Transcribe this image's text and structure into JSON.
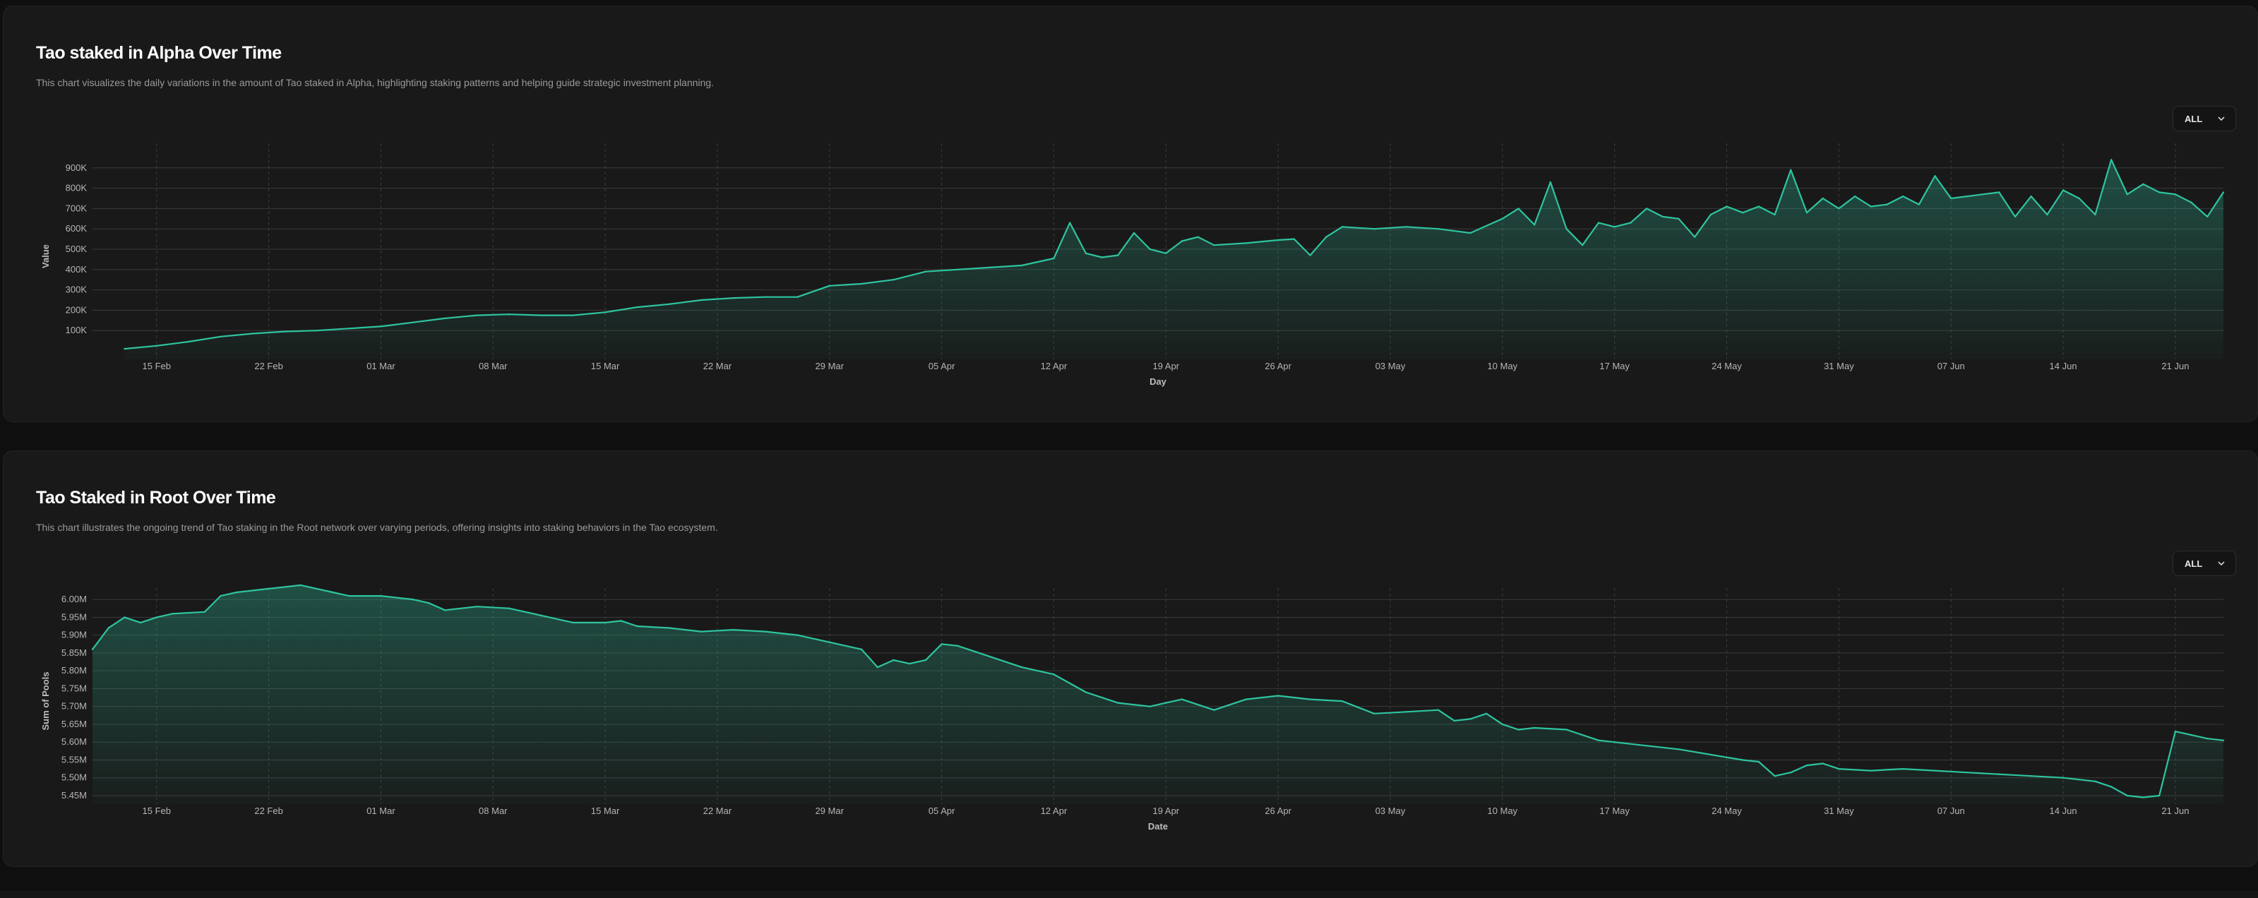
{
  "cards": [
    {
      "title": "Tao staked in Alpha Over Time",
      "description": "This chart visualizes the daily variations in the amount of Tao staked in Alpha, highlighting staking patterns and helping guide strategic investment planning.",
      "range": {
        "selected": "ALL",
        "icon": "chevron-down-icon"
      }
    },
    {
      "title": "Tao Staked in Root Over Time",
      "description": "This chart illustrates the ongoing trend of Tao staking in the Root network over varying periods, offering insights into staking behaviors in the Tao ecosystem.",
      "range": {
        "selected": "ALL",
        "icon": "chevron-down-icon"
      }
    }
  ],
  "colors": {
    "line": "#2ec4a0",
    "background": "#191919",
    "grid": "#3a3a3a"
  },
  "chart_data": [
    {
      "type": "area",
      "xlabel": "Day",
      "ylabel": "Value",
      "x_range": [
        "2025-02-11",
        "2025-06-24"
      ],
      "ylim": [
        0,
        1000000
      ],
      "yticks": [
        100000,
        200000,
        300000,
        400000,
        500000,
        600000,
        700000,
        800000,
        900000
      ],
      "ytick_labels": [
        "100K",
        "200K",
        "300K",
        "400K",
        "500K",
        "600K",
        "700K",
        "800K",
        "900K"
      ],
      "xticks": [
        "2025-02-15",
        "2025-02-22",
        "2025-03-01",
        "2025-03-08",
        "2025-03-15",
        "2025-03-22",
        "2025-03-29",
        "2025-04-05",
        "2025-04-12",
        "2025-04-19",
        "2025-04-26",
        "2025-05-03",
        "2025-05-10",
        "2025-05-17",
        "2025-05-24",
        "2025-05-31",
        "2025-06-07",
        "2025-06-14",
        "2025-06-21"
      ],
      "xtick_labels": [
        "15 Feb",
        "22 Feb",
        "01 Mar",
        "08 Mar",
        "15 Mar",
        "22 Mar",
        "29 Mar",
        "05 Apr",
        "12 Apr",
        "19 Apr",
        "26 Apr",
        "03 May",
        "10 May",
        "17 May",
        "24 May",
        "31 May",
        "07 Jun",
        "14 Jun",
        "21 Jun"
      ],
      "grid": true,
      "series": [
        {
          "x": [
            "2025-02-13",
            "2025-02-15",
            "2025-02-17",
            "2025-02-19",
            "2025-02-21",
            "2025-02-23",
            "2025-02-25",
            "2025-02-27",
            "2025-03-01",
            "2025-03-03",
            "2025-03-05",
            "2025-03-07",
            "2025-03-09",
            "2025-03-11",
            "2025-03-13",
            "2025-03-15",
            "2025-03-17",
            "2025-03-19",
            "2025-03-21",
            "2025-03-23",
            "2025-03-25",
            "2025-03-27",
            "2025-03-29",
            "2025-03-31",
            "2025-04-02",
            "2025-04-04",
            "2025-04-06",
            "2025-04-08",
            "2025-04-10",
            "2025-04-12",
            "2025-04-13",
            "2025-04-14",
            "2025-04-15",
            "2025-04-16",
            "2025-04-17",
            "2025-04-18",
            "2025-04-19",
            "2025-04-20",
            "2025-04-21",
            "2025-04-22",
            "2025-04-24",
            "2025-04-26",
            "2025-04-27",
            "2025-04-28",
            "2025-04-29",
            "2025-04-30",
            "2025-05-02",
            "2025-05-04",
            "2025-05-06",
            "2025-05-08",
            "2025-05-10",
            "2025-05-11",
            "2025-05-12",
            "2025-05-13",
            "2025-05-14",
            "2025-05-15",
            "2025-05-16",
            "2025-05-17",
            "2025-05-18",
            "2025-05-19",
            "2025-05-20",
            "2025-05-21",
            "2025-05-22",
            "2025-05-23",
            "2025-05-24",
            "2025-05-25",
            "2025-05-26",
            "2025-05-27",
            "2025-05-28",
            "2025-05-29",
            "2025-05-30",
            "2025-05-31",
            "2025-06-01",
            "2025-06-02",
            "2025-06-03",
            "2025-06-04",
            "2025-06-05",
            "2025-06-06",
            "2025-06-07",
            "2025-06-08",
            "2025-06-09",
            "2025-06-10",
            "2025-06-11",
            "2025-06-12",
            "2025-06-13",
            "2025-06-14",
            "2025-06-15",
            "2025-06-16",
            "2025-06-17",
            "2025-06-18",
            "2025-06-19",
            "2025-06-20",
            "2025-06-21",
            "2025-06-22",
            "2025-06-23",
            "2025-06-24"
          ],
          "y": [
            10000,
            25000,
            45000,
            70000,
            85000,
            95000,
            100000,
            110000,
            120000,
            140000,
            160000,
            175000,
            180000,
            175000,
            175000,
            190000,
            215000,
            230000,
            250000,
            260000,
            265000,
            265000,
            320000,
            330000,
            350000,
            390000,
            400000,
            410000,
            420000,
            455000,
            630000,
            480000,
            460000,
            470000,
            580000,
            500000,
            480000,
            540000,
            560000,
            520000,
            530000,
            545000,
            550000,
            470000,
            560000,
            610000,
            600000,
            610000,
            600000,
            580000,
            650000,
            700000,
            620000,
            830000,
            600000,
            520000,
            630000,
            610000,
            630000,
            700000,
            660000,
            650000,
            560000,
            670000,
            710000,
            680000,
            710000,
            670000,
            890000,
            680000,
            750000,
            700000,
            760000,
            710000,
            720000,
            760000,
            720000,
            860000,
            750000,
            760000,
            770000,
            780000,
            660000,
            760000,
            670000,
            790000,
            750000,
            670000,
            940000,
            770000,
            820000,
            780000,
            770000,
            730000,
            660000,
            780000
          ]
        }
      ]
    },
    {
      "type": "area",
      "xlabel": "Date",
      "ylabel": "Sum of Pools",
      "x_range": [
        "2025-02-11",
        "2025-06-24"
      ],
      "ylim": [
        5450000,
        6020000
      ],
      "yticks": [
        5450000,
        5500000,
        5550000,
        5600000,
        5650000,
        5700000,
        5750000,
        5800000,
        5850000,
        5900000,
        5950000,
        6000000
      ],
      "ytick_labels": [
        "5.45M",
        "5.50M",
        "5.55M",
        "5.60M",
        "5.65M",
        "5.70M",
        "5.75M",
        "5.80M",
        "5.85M",
        "5.90M",
        "5.95M",
        "6.00M"
      ],
      "xticks": [
        "2025-02-15",
        "2025-02-22",
        "2025-03-01",
        "2025-03-08",
        "2025-03-15",
        "2025-03-22",
        "2025-03-29",
        "2025-04-05",
        "2025-04-12",
        "2025-04-19",
        "2025-04-26",
        "2025-05-03",
        "2025-05-10",
        "2025-05-17",
        "2025-05-24",
        "2025-05-31",
        "2025-06-07",
        "2025-06-14",
        "2025-06-21"
      ],
      "xtick_labels": [
        "15 Feb",
        "22 Feb",
        "01 Mar",
        "08 Mar",
        "15 Mar",
        "22 Mar",
        "29 Mar",
        "05 Apr",
        "12 Apr",
        "19 Apr",
        "26 Apr",
        "03 May",
        "10 May",
        "17 May",
        "24 May",
        "31 May",
        "07 Jun",
        "14 Jun",
        "21 Jun"
      ],
      "grid": true,
      "series": [
        {
          "x": [
            "2025-02-11",
            "2025-02-12",
            "2025-02-13",
            "2025-02-14",
            "2025-02-15",
            "2025-02-16",
            "2025-02-18",
            "2025-02-19",
            "2025-02-20",
            "2025-02-22",
            "2025-02-24",
            "2025-02-26",
            "2025-02-27",
            "2025-03-01",
            "2025-03-03",
            "2025-03-04",
            "2025-03-05",
            "2025-03-07",
            "2025-03-09",
            "2025-03-11",
            "2025-03-13",
            "2025-03-15",
            "2025-03-16",
            "2025-03-17",
            "2025-03-19",
            "2025-03-21",
            "2025-03-23",
            "2025-03-25",
            "2025-03-27",
            "2025-03-29",
            "2025-03-31",
            "2025-04-01",
            "2025-04-02",
            "2025-04-03",
            "2025-04-04",
            "2025-04-05",
            "2025-04-06",
            "2025-04-08",
            "2025-04-10",
            "2025-04-12",
            "2025-04-14",
            "2025-04-16",
            "2025-04-18",
            "2025-04-19",
            "2025-04-20",
            "2025-04-22",
            "2025-04-24",
            "2025-04-26",
            "2025-04-28",
            "2025-04-30",
            "2025-05-02",
            "2025-05-04",
            "2025-05-06",
            "2025-05-07",
            "2025-05-08",
            "2025-05-09",
            "2025-05-10",
            "2025-05-11",
            "2025-05-12",
            "2025-05-14",
            "2025-05-16",
            "2025-05-17",
            "2025-05-19",
            "2025-05-21",
            "2025-05-23",
            "2025-05-25",
            "2025-05-26",
            "2025-05-27",
            "2025-05-28",
            "2025-05-29",
            "2025-05-30",
            "2025-05-31",
            "2025-06-02",
            "2025-06-04",
            "2025-06-06",
            "2025-06-08",
            "2025-06-10",
            "2025-06-12",
            "2025-06-14",
            "2025-06-16",
            "2025-06-17",
            "2025-06-18",
            "2025-06-19",
            "2025-06-20",
            "2025-06-21",
            "2025-06-22",
            "2025-06-23",
            "2025-06-24"
          ],
          "y": [
            5860000,
            5920000,
            5950000,
            5935000,
            5950000,
            5960000,
            5965000,
            6010000,
            6020000,
            6030000,
            6040000,
            6020000,
            6010000,
            6010000,
            6000000,
            5990000,
            5970000,
            5980000,
            5975000,
            5955000,
            5935000,
            5935000,
            5940000,
            5925000,
            5920000,
            5910000,
            5915000,
            5910000,
            5900000,
            5880000,
            5860000,
            5810000,
            5830000,
            5820000,
            5830000,
            5875000,
            5870000,
            5840000,
            5810000,
            5790000,
            5740000,
            5710000,
            5700000,
            5710000,
            5720000,
            5690000,
            5720000,
            5730000,
            5720000,
            5715000,
            5680000,
            5685000,
            5690000,
            5660000,
            5665000,
            5680000,
            5650000,
            5635000,
            5640000,
            5635000,
            5605000,
            5600000,
            5590000,
            5580000,
            5565000,
            5550000,
            5545000,
            5505000,
            5515000,
            5535000,
            5540000,
            5525000,
            5520000,
            5525000,
            5520000,
            5515000,
            5510000,
            5505000,
            5500000,
            5490000,
            5475000,
            5450000,
            5445000,
            5450000,
            5630000,
            5620000,
            5610000,
            5605000
          ]
        }
      ]
    }
  ]
}
